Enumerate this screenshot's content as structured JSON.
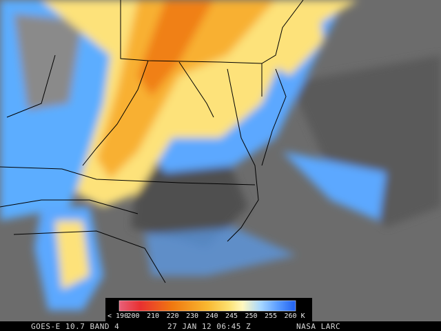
{
  "colorbar": {
    "labels": [
      "< 190",
      "200",
      "210",
      "220",
      "230",
      "240",
      "245",
      "250",
      "255",
      "260 K"
    ]
  },
  "footer": {
    "satellite": "GOES-E 10.7 BAND 4",
    "time": "27 JAN 12 06:45 Z",
    "source": "NASA LARC"
  }
}
